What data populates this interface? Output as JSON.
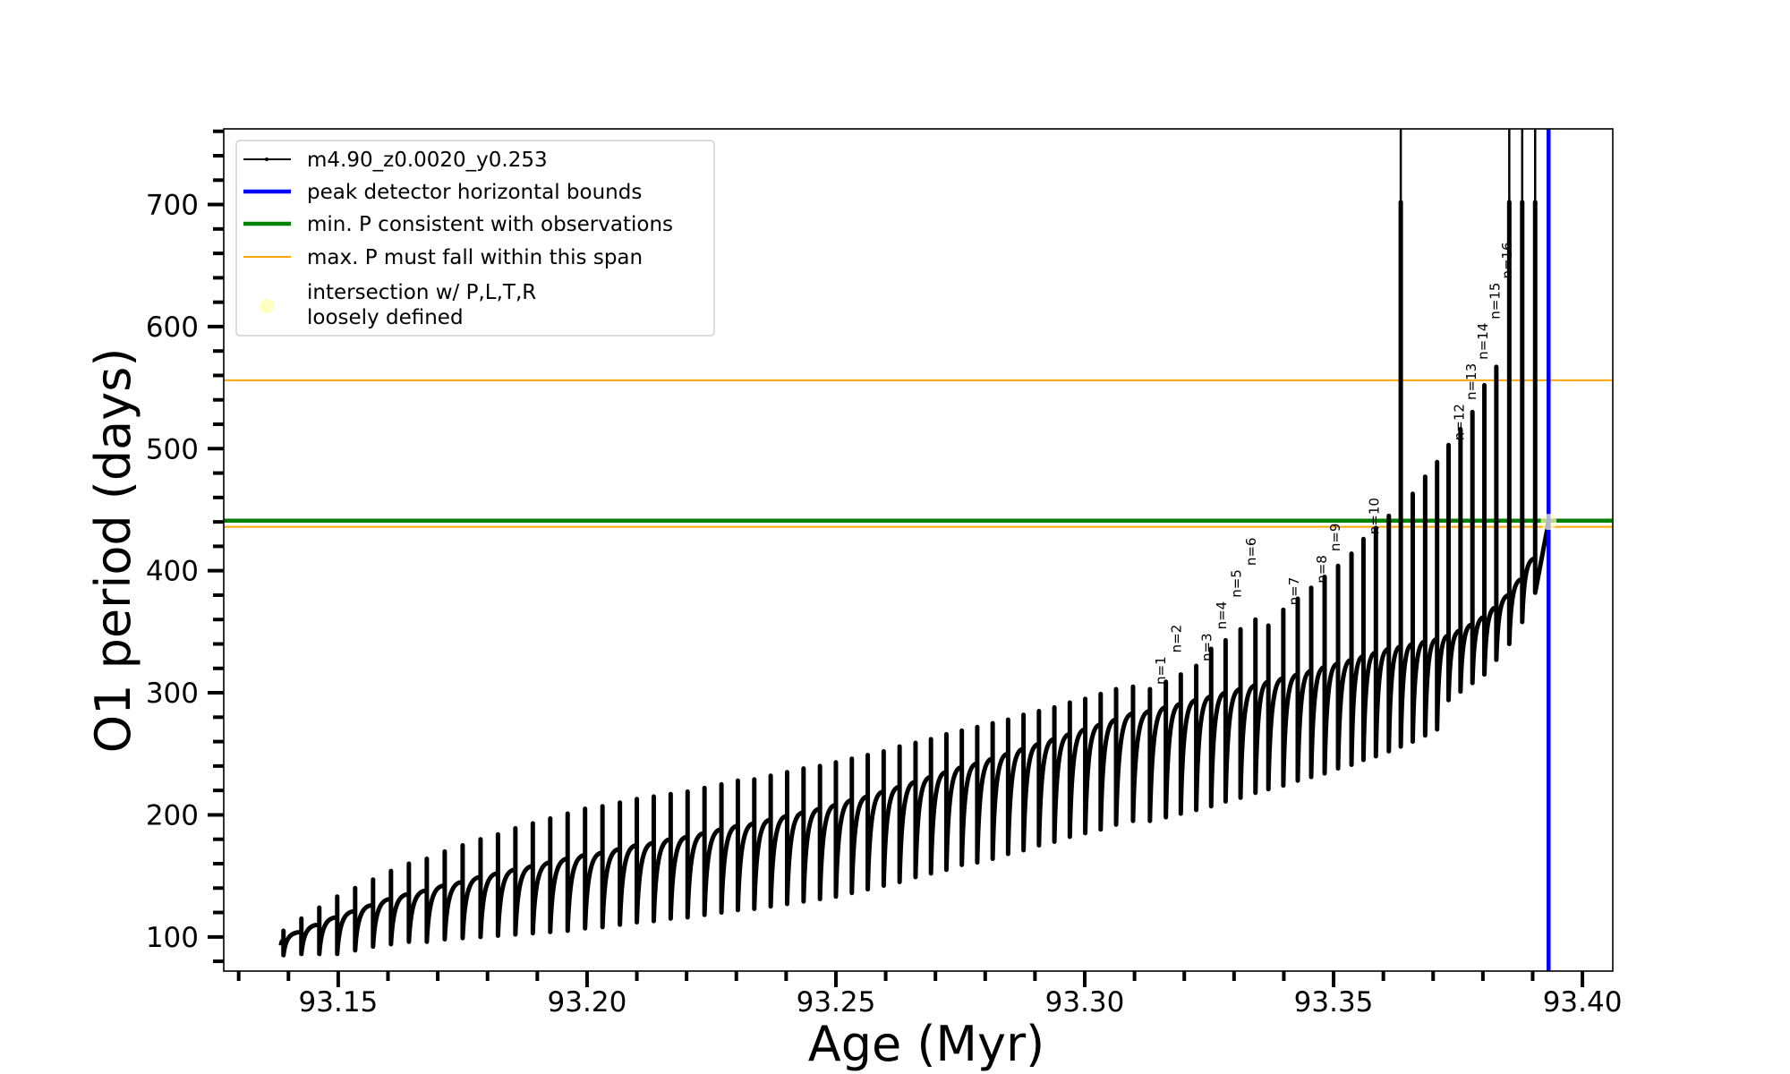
{
  "chart_data": {
    "type": "line",
    "title": "",
    "xlabel": "Age (Myr)",
    "ylabel": "O1 period (days)",
    "xlim": [
      93.127,
      93.4061
    ],
    "ylim": [
      72,
      762
    ],
    "grid": false,
    "xticks": [
      93.15,
      93.2,
      93.25,
      93.3,
      93.35,
      93.4
    ],
    "xtick_labels": [
      "93.15",
      "93.20",
      "93.25",
      "93.30",
      "93.35",
      "93.40"
    ],
    "xminor_step": 0.01,
    "yticks": [
      100,
      200,
      300,
      400,
      500,
      600,
      700
    ],
    "ytick_labels": [
      "100",
      "200",
      "300",
      "400",
      "500",
      "600",
      "700"
    ],
    "yminor_step": 20,
    "legend": {
      "position": "upper-left",
      "entries": [
        {
          "label": "m4.90_z0.0020_y0.253",
          "color": "#000000",
          "style": "line-marker"
        },
        {
          "label": "peak detector horizontal bounds",
          "color": "#0000ff",
          "style": "thick-line"
        },
        {
          "label": "min. P consistent with observations",
          "color": "#008000",
          "style": "thick-line"
        },
        {
          "label": "max. P must fall within this span",
          "color": "#ffa500",
          "style": "thin-line"
        },
        {
          "label": "intersection w/ P,L,T,R",
          "label2": "loosely defined",
          "color": "#ffffc0",
          "style": "circle"
        }
      ]
    },
    "series": [
      {
        "name": "m4.90_z0.0020_y0.253",
        "color": "#000000",
        "columns": [
          "age",
          "base",
          "peak",
          "trough"
        ],
        "start": [
          93.1385,
          93
        ],
        "cycles": [
          [
            93.139,
            97,
            105,
            85
          ],
          [
            93.1426,
            104,
            115,
            86
          ],
          [
            93.1462,
            110,
            124,
            86
          ],
          [
            93.1498,
            116,
            133,
            86
          ],
          [
            93.1534,
            121,
            140,
            89
          ],
          [
            93.157,
            126,
            147,
            92
          ],
          [
            93.1606,
            131,
            154,
            94
          ],
          [
            93.1642,
            135,
            160,
            96
          ],
          [
            93.1678,
            138,
            164,
            96
          ],
          [
            93.1714,
            142,
            170,
            98
          ],
          [
            93.175,
            145,
            175,
            99
          ],
          [
            93.1786,
            149,
            180,
            100
          ],
          [
            93.1821,
            152,
            184,
            101
          ],
          [
            93.1856,
            155,
            189,
            102
          ],
          [
            93.1891,
            158,
            193,
            103
          ],
          [
            93.1926,
            161,
            197,
            104
          ],
          [
            93.1961,
            164,
            201,
            105
          ],
          [
            93.1996,
            167,
            205,
            107
          ],
          [
            93.2031,
            169,
            207,
            108
          ],
          [
            93.2066,
            172,
            210,
            110
          ],
          [
            93.21,
            175,
            213,
            112
          ],
          [
            93.2134,
            177,
            215,
            113
          ],
          [
            93.2168,
            180,
            217,
            115
          ],
          [
            93.2202,
            182,
            219,
            116
          ],
          [
            93.2236,
            185,
            222,
            118
          ],
          [
            93.227,
            188,
            225,
            120
          ],
          [
            93.2303,
            191,
            228,
            122
          ],
          [
            93.2336,
            193,
            229,
            123
          ],
          [
            93.2369,
            196,
            232,
            125
          ],
          [
            93.2402,
            199,
            235,
            127
          ],
          [
            93.2435,
            202,
            238,
            129
          ],
          [
            93.2468,
            205,
            240,
            131
          ],
          [
            93.25,
            208,
            243,
            133
          ],
          [
            93.2532,
            212,
            246,
            136
          ],
          [
            93.2564,
            215,
            249,
            139
          ],
          [
            93.2596,
            219,
            252,
            142
          ],
          [
            93.2628,
            223,
            256,
            145
          ],
          [
            93.266,
            227,
            259,
            149
          ],
          [
            93.2691,
            231,
            262,
            152
          ],
          [
            93.2722,
            235,
            266,
            155
          ],
          [
            93.2753,
            239,
            269,
            159
          ],
          [
            93.2784,
            242,
            272,
            161
          ],
          [
            93.2815,
            246,
            275,
            164
          ],
          [
            93.2846,
            250,
            278,
            168
          ],
          [
            93.2877,
            254,
            282,
            171
          ],
          [
            93.2908,
            258,
            285,
            175
          ],
          [
            93.2939,
            262,
            288,
            178
          ],
          [
            93.297,
            266,
            292,
            182
          ],
          [
            93.3001,
            270,
            295,
            185
          ],
          [
            93.3032,
            274,
            299,
            188
          ],
          [
            93.3063,
            278,
            303,
            192
          ],
          [
            93.3097,
            283,
            305,
            195
          ],
          [
            93.3131,
            285,
            303,
            195
          ],
          [
            93.3163,
            288,
            309,
            198
          ],
          [
            93.3193,
            291,
            315,
            201
          ],
          [
            93.3224,
            294,
            322,
            204
          ],
          [
            93.3254,
            297,
            336,
            207
          ],
          [
            93.3283,
            300,
            343,
            211
          ],
          [
            93.3313,
            303,
            352,
            214
          ],
          [
            93.3343,
            306,
            360,
            218
          ],
          [
            93.3369,
            309,
            355,
            221
          ],
          [
            93.3399,
            312,
            368,
            224
          ],
          [
            93.3428,
            315,
            377,
            228
          ],
          [
            93.3455,
            318,
            386,
            231
          ],
          [
            93.3482,
            321,
            395,
            234
          ],
          [
            93.3509,
            324,
            404,
            238
          ],
          [
            93.3536,
            327,
            414,
            241
          ],
          [
            93.356,
            330,
            426,
            245
          ],
          [
            93.3585,
            333,
            435,
            248
          ],
          [
            93.3611,
            336,
            445,
            252
          ],
          [
            93.3635,
            338,
            1000,
            256
          ],
          [
            93.3659,
            340,
            463,
            260
          ],
          [
            93.3684,
            342,
            477,
            265
          ],
          [
            93.3708,
            344,
            489,
            270
          ],
          [
            93.3731,
            347,
            503,
            294
          ],
          [
            93.3755,
            351,
            516,
            301
          ],
          [
            93.3779,
            356,
            530,
            308
          ],
          [
            93.3803,
            362,
            552,
            315
          ],
          [
            93.3827,
            370,
            567,
            327
          ],
          [
            93.3853,
            380,
            1000,
            340
          ],
          [
            93.3879,
            393,
            1000,
            358
          ],
          [
            93.3905,
            410,
            1000,
            382
          ]
        ],
        "end": [
          93.3932,
          440
        ]
      }
    ],
    "hlines": [
      {
        "y": 556,
        "color": "#ffa500",
        "kind": "max-P-span-upper"
      },
      {
        "y": 436,
        "color": "#ffa500",
        "kind": "max-P-span-lower"
      },
      {
        "y": 441,
        "color": "#008000",
        "kind": "min-P"
      }
    ],
    "vlines": [
      {
        "x": 93.3932,
        "color": "#0000ff",
        "kind": "peak-detector-bound"
      }
    ],
    "points": [
      {
        "x": 93.3932,
        "y": 440,
        "color": "#ffffc0"
      }
    ],
    "annotations": [
      {
        "text": "n=1",
        "x": 93.3131,
        "y": 303
      },
      {
        "text": "n=2",
        "x": 93.3163,
        "y": 309
      },
      {
        "text": "n=3",
        "x": 93.3224,
        "y": 322
      },
      {
        "text": "n=4",
        "x": 93.3254,
        "y": 336
      },
      {
        "text": "n=5",
        "x": 93.3283,
        "y": 343
      },
      {
        "text": "n=6",
        "x": 93.3313,
        "y": 352
      },
      {
        "text": "n=7",
        "x": 93.3399,
        "y": 368
      },
      {
        "text": "n=8",
        "x": 93.3455,
        "y": 386
      },
      {
        "text": "n=9",
        "x": 93.3482,
        "y": 395
      },
      {
        "text": "n=10",
        "x": 93.356,
        "y": 426
      },
      {
        "text": "n=12",
        "x": 93.3731,
        "y": 503
      },
      {
        "text": "n=13",
        "x": 93.3755,
        "y": 516
      },
      {
        "text": "n=14",
        "x": 93.3779,
        "y": 530
      },
      {
        "text": "n=15",
        "x": 93.3803,
        "y": 552
      },
      {
        "text": "n=16",
        "x": 93.3827,
        "y": 567
      }
    ]
  }
}
